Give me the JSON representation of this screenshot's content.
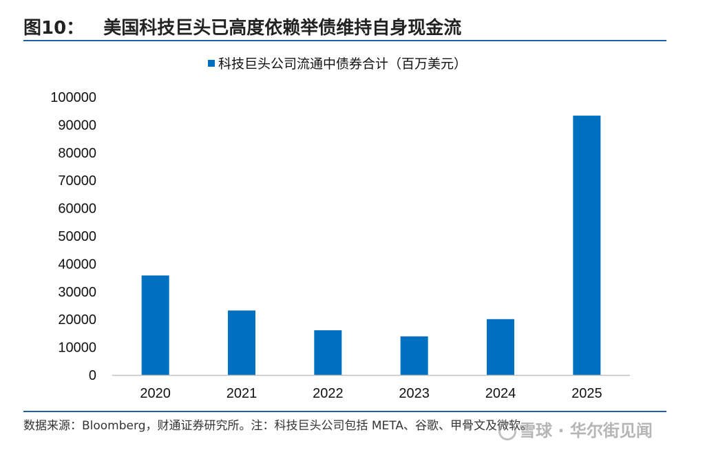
{
  "figure": {
    "number": "图10：",
    "title": "美国科技巨头已高度依赖举债维持自身现金流"
  },
  "source_note": "数据来源：Bloomberg，财通证券研究所。注：科技巨头公司包括 META、谷歌、甲骨文及微软。",
  "watermark": "雪球 · 华尔街见闻",
  "colors": {
    "bar": "#0070c0",
    "rule": "#1f5fa8"
  },
  "chart_data": {
    "type": "bar",
    "title": "",
    "legend": "科技巨头公司流通中债券合计（百万美元）",
    "legend_position": "top-center",
    "categories": [
      "2020",
      "2021",
      "2022",
      "2023",
      "2024",
      "2025"
    ],
    "series": [
      {
        "name": "科技巨头公司流通中债券合计（百万美元）",
        "values": [
          35800,
          23200,
          16100,
          13900,
          20100,
          93300
        ]
      }
    ],
    "ylim": [
      0,
      100000
    ],
    "yticks": [
      0,
      10000,
      20000,
      30000,
      40000,
      50000,
      60000,
      70000,
      80000,
      90000,
      100000
    ],
    "xlabel": "",
    "ylabel": "",
    "grid": false
  }
}
